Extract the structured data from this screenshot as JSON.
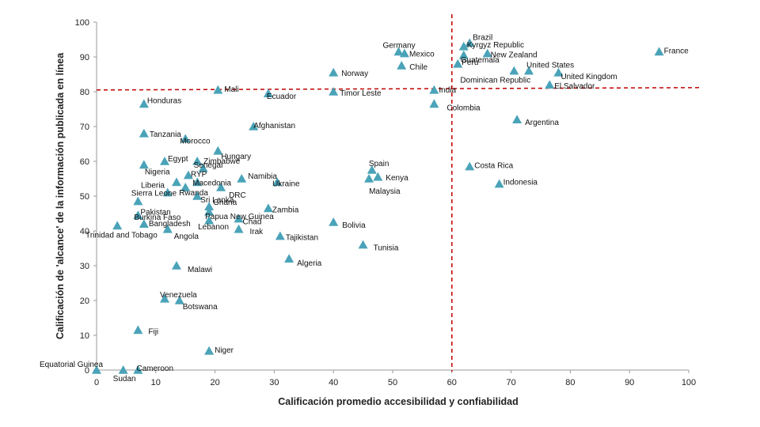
{
  "chart_data": {
    "type": "scatter",
    "xlabel": "Calificación promedio accesibilidad y confiabilidad",
    "ylabel": "Calificación de 'alcance' de la información publicada en línea",
    "xlim": [
      0,
      100
    ],
    "ylim": [
      0,
      100
    ],
    "xticks": [
      "0",
      "10",
      "20",
      "30",
      "40",
      "50",
      "60",
      "70",
      "80",
      "90",
      "100"
    ],
    "yticks": [
      "0",
      "10",
      "20",
      "30",
      "40",
      "50",
      "60",
      "70",
      "80",
      "90",
      "100"
    ],
    "grid": false,
    "marker_color": "#4aa3b8",
    "reference_lines": [
      {
        "axis": "x",
        "value": 60,
        "color": "#c00000"
      },
      {
        "axis": "y",
        "value": 80.5,
        "color": "#c00000"
      }
    ],
    "points": [
      {
        "name": "Brazil",
        "x": 63,
        "y": 94
      },
      {
        "name": "Kyrgyz Republic",
        "x": 62,
        "y": 93
      },
      {
        "name": "New Zealand",
        "x": 66,
        "y": 91
      },
      {
        "name": "Guatemala",
        "x": 62,
        "y": 90.5
      },
      {
        "name": "Peru",
        "x": 61,
        "y": 88
      },
      {
        "name": "United States",
        "x": 73,
        "y": 86
      },
      {
        "name": "Dominican Republic",
        "x": 70.5,
        "y": 86
      },
      {
        "name": "United Kingdom",
        "x": 78,
        "y": 85.5
      },
      {
        "name": "El Salvador",
        "x": 76.5,
        "y": 82
      },
      {
        "name": "France",
        "x": 95,
        "y": 91.5
      },
      {
        "name": "Germany",
        "x": 51,
        "y": 91.5
      },
      {
        "name": "Mexico",
        "x": 52,
        "y": 91
      },
      {
        "name": "Chile",
        "x": 51.5,
        "y": 87.5
      },
      {
        "name": "Norway",
        "x": 40,
        "y": 85.5
      },
      {
        "name": "India",
        "x": 57,
        "y": 80.5
      },
      {
        "name": "Timor Leste",
        "x": 40,
        "y": 80
      },
      {
        "name": "Ecuador",
        "x": 29,
        "y": 79.5
      },
      {
        "name": "Mali",
        "x": 20.5,
        "y": 80.5
      },
      {
        "name": "Colombia",
        "x": 57,
        "y": 76.5
      },
      {
        "name": "Honduras",
        "x": 8,
        "y": 76.5
      },
      {
        "name": "Argentina",
        "x": 71,
        "y": 72
      },
      {
        "name": "Afghanistan",
        "x": 26.5,
        "y": 70
      },
      {
        "name": "Tanzania",
        "x": 8,
        "y": 68
      },
      {
        "name": "Morocco",
        "x": 15,
        "y": 66.5
      },
      {
        "name": "Hungary",
        "x": 20.5,
        "y": 63
      },
      {
        "name": "Egypt",
        "x": 11.5,
        "y": 60
      },
      {
        "name": "Zimbabwe",
        "x": 17,
        "y": 60
      },
      {
        "name": "Nigeria",
        "x": 8,
        "y": 59
      },
      {
        "name": "Senegal",
        "x": 18,
        "y": 58
      },
      {
        "name": "Costa Rica",
        "x": 63,
        "y": 58.5
      },
      {
        "name": "Spain",
        "x": 46.5,
        "y": 57.5
      },
      {
        "name": "Kenya",
        "x": 47.5,
        "y": 55.5
      },
      {
        "name": "Malaysia",
        "x": 46,
        "y": 55
      },
      {
        "name": "Namibia",
        "x": 24.5,
        "y": 55
      },
      {
        "name": "RYP",
        "x": 15.5,
        "y": 56
      },
      {
        "name": "Macedonia",
        "x": 17,
        "y": 54
      },
      {
        "name": "Indonesia",
        "x": 68,
        "y": 53.5
      },
      {
        "name": "Ukraine",
        "x": 30.5,
        "y": 54
      },
      {
        "name": "Liberia",
        "x": 13.5,
        "y": 54
      },
      {
        "name": "DRC",
        "x": 21,
        "y": 52.5
      },
      {
        "name": "Rwanda",
        "x": 15,
        "y": 52.5
      },
      {
        "name": "Sierra Leone",
        "x": 12,
        "y": 51
      },
      {
        "name": "Sri Lanka",
        "x": 17,
        "y": 50
      },
      {
        "name": "Pakistan",
        "x": 7,
        "y": 48.5
      },
      {
        "name": "Ghana",
        "x": 19,
        "y": 47
      },
      {
        "name": "Zambia",
        "x": 29,
        "y": 46.5
      },
      {
        "name": "Papua New Guinea",
        "x": 19,
        "y": 45.5
      },
      {
        "name": "Burkina Faso",
        "x": 7,
        "y": 44.5
      },
      {
        "name": "Chad",
        "x": 24,
        "y": 43.5
      },
      {
        "name": "Lebanon",
        "x": 19,
        "y": 43
      },
      {
        "name": "Bolivia",
        "x": 40,
        "y": 42.5
      },
      {
        "name": "Bangladesh",
        "x": 8,
        "y": 42
      },
      {
        "name": "Trinidad and Tobago",
        "x": 3.5,
        "y": 41.5
      },
      {
        "name": "Irak",
        "x": 24,
        "y": 40.5
      },
      {
        "name": "Angola",
        "x": 12,
        "y": 40.5
      },
      {
        "name": "Tajikistan",
        "x": 31,
        "y": 38.5
      },
      {
        "name": "Tunisia",
        "x": 45,
        "y": 36
      },
      {
        "name": "Algeria",
        "x": 32.5,
        "y": 32
      },
      {
        "name": "Malawi",
        "x": 13.5,
        "y": 30
      },
      {
        "name": "Venezuela",
        "x": 11.5,
        "y": 20.5
      },
      {
        "name": "Botswana",
        "x": 14,
        "y": 20
      },
      {
        "name": "Fiji",
        "x": 7,
        "y": 11.5
      },
      {
        "name": "Niger",
        "x": 19,
        "y": 5.5
      },
      {
        "name": "Cameroon",
        "x": 7,
        "y": 0
      },
      {
        "name": "Sudan",
        "x": 4.5,
        "y": 0
      },
      {
        "name": "Equatorial Guinea",
        "x": 0,
        "y": 0
      }
    ]
  }
}
